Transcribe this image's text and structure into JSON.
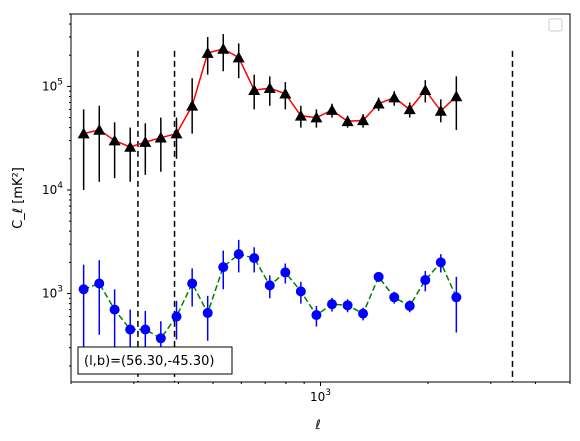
{
  "chart_data": {
    "type": "line",
    "title": "",
    "xlabel": "ℓ",
    "ylabel": "C_ℓ [mK²]",
    "xscale": "log",
    "yscale": "log",
    "xlim": [
      200,
      5000
    ],
    "ylim": [
      140,
      500000
    ],
    "grid": false,
    "legend": "top-right, empty",
    "annotation": "(l,b)=(56.30,-45.30)",
    "vlines": [
      308,
      390,
      3450
    ],
    "series": [
      {
        "color": "#ff0000",
        "marker": "triangle",
        "marker_color": "#000000",
        "linestyle": "solid",
        "points": [
          {
            "x": 217,
            "y": 35000,
            "lo": 10000,
            "hi": 60000
          },
          {
            "x": 240,
            "y": 38000,
            "lo": 12000,
            "hi": 65000
          },
          {
            "x": 265,
            "y": 30000,
            "lo": 13000,
            "hi": 45000
          },
          {
            "x": 293,
            "y": 26000,
            "lo": 12000,
            "hi": 40000
          },
          {
            "x": 323,
            "y": 29000,
            "lo": 14000,
            "hi": 44000
          },
          {
            "x": 357,
            "y": 32000,
            "lo": 15000,
            "hi": 50000
          },
          {
            "x": 395,
            "y": 35000,
            "lo": 20000,
            "hi": 50000
          },
          {
            "x": 437,
            "y": 65000,
            "lo": 35000,
            "hi": 120000
          },
          {
            "x": 483,
            "y": 210000,
            "lo": 130000,
            "hi": 300000
          },
          {
            "x": 534,
            "y": 230000,
            "lo": 140000,
            "hi": 320000
          },
          {
            "x": 590,
            "y": 190000,
            "lo": 120000,
            "hi": 260000
          },
          {
            "x": 652,
            "y": 92000,
            "lo": 60000,
            "hi": 130000
          },
          {
            "x": 721,
            "y": 96000,
            "lo": 65000,
            "hi": 125000
          },
          {
            "x": 797,
            "y": 85000,
            "lo": 60000,
            "hi": 110000
          },
          {
            "x": 881,
            "y": 52000,
            "lo": 40000,
            "hi": 65000
          },
          {
            "x": 974,
            "y": 50000,
            "lo": 40000,
            "hi": 60000
          },
          {
            "x": 1077,
            "y": 59000,
            "lo": 50000,
            "hi": 68000
          },
          {
            "x": 1191,
            "y": 46000,
            "lo": 40000,
            "hi": 52000
          },
          {
            "x": 1316,
            "y": 47000,
            "lo": 40000,
            "hi": 54000
          },
          {
            "x": 1455,
            "y": 68000,
            "lo": 58000,
            "hi": 78000
          },
          {
            "x": 1609,
            "y": 78000,
            "lo": 65000,
            "hi": 90000
          },
          {
            "x": 1778,
            "y": 60000,
            "lo": 50000,
            "hi": 70000
          },
          {
            "x": 1966,
            "y": 92000,
            "lo": 70000,
            "hi": 115000
          },
          {
            "x": 2173,
            "y": 58000,
            "lo": 45000,
            "hi": 75000
          },
          {
            "x": 2402,
            "y": 80000,
            "lo": 38000,
            "hi": 125000
          }
        ]
      },
      {
        "color": "#008000",
        "marker": "circle",
        "marker_color": "#0000ff",
        "linestyle": "dashed",
        "points": [
          {
            "x": 217,
            "y": 1100,
            "lo": 300,
            "hi": 1900
          },
          {
            "x": 240,
            "y": 1250,
            "lo": 400,
            "hi": 2100
          },
          {
            "x": 265,
            "y": 700,
            "lo": 300,
            "hi": 1100
          },
          {
            "x": 293,
            "y": 450,
            "lo": 200,
            "hi": 700
          },
          {
            "x": 323,
            "y": 450,
            "lo": 220,
            "hi": 680
          },
          {
            "x": 357,
            "y": 370,
            "lo": 200,
            "hi": 540
          },
          {
            "x": 395,
            "y": 600,
            "lo": 360,
            "hi": 850
          },
          {
            "x": 437,
            "y": 1250,
            "lo": 750,
            "hi": 1750
          },
          {
            "x": 483,
            "y": 650,
            "lo": 350,
            "hi": 950
          },
          {
            "x": 534,
            "y": 1800,
            "lo": 1100,
            "hi": 2600
          },
          {
            "x": 590,
            "y": 2400,
            "lo": 1600,
            "hi": 3300
          },
          {
            "x": 652,
            "y": 2200,
            "lo": 1600,
            "hi": 2800
          },
          {
            "x": 721,
            "y": 1200,
            "lo": 900,
            "hi": 1500
          },
          {
            "x": 797,
            "y": 1600,
            "lo": 1250,
            "hi": 1950
          },
          {
            "x": 881,
            "y": 1050,
            "lo": 800,
            "hi": 1300
          },
          {
            "x": 974,
            "y": 620,
            "lo": 480,
            "hi": 760
          },
          {
            "x": 1077,
            "y": 790,
            "lo": 670,
            "hi": 910
          },
          {
            "x": 1191,
            "y": 770,
            "lo": 660,
            "hi": 880
          },
          {
            "x": 1316,
            "y": 640,
            "lo": 550,
            "hi": 730
          },
          {
            "x": 1455,
            "y": 1450,
            "lo": 1300,
            "hi": 1600
          },
          {
            "x": 1609,
            "y": 920,
            "lo": 800,
            "hi": 1040
          },
          {
            "x": 1778,
            "y": 760,
            "lo": 660,
            "hi": 860
          },
          {
            "x": 1966,
            "y": 1350,
            "lo": 1050,
            "hi": 1650
          },
          {
            "x": 2173,
            "y": 2000,
            "lo": 1600,
            "hi": 2400
          },
          {
            "x": 2402,
            "y": 920,
            "lo": 420,
            "hi": 1450
          }
        ]
      }
    ],
    "y_ticks": [
      {
        "value": 1000,
        "base": "10",
        "exp": "3"
      },
      {
        "value": 10000,
        "base": "10",
        "exp": "4"
      },
      {
        "value": 100000,
        "base": "10",
        "exp": "5"
      }
    ],
    "x_ticks": [
      {
        "value": 1000,
        "base": "10",
        "exp": "3"
      }
    ]
  }
}
